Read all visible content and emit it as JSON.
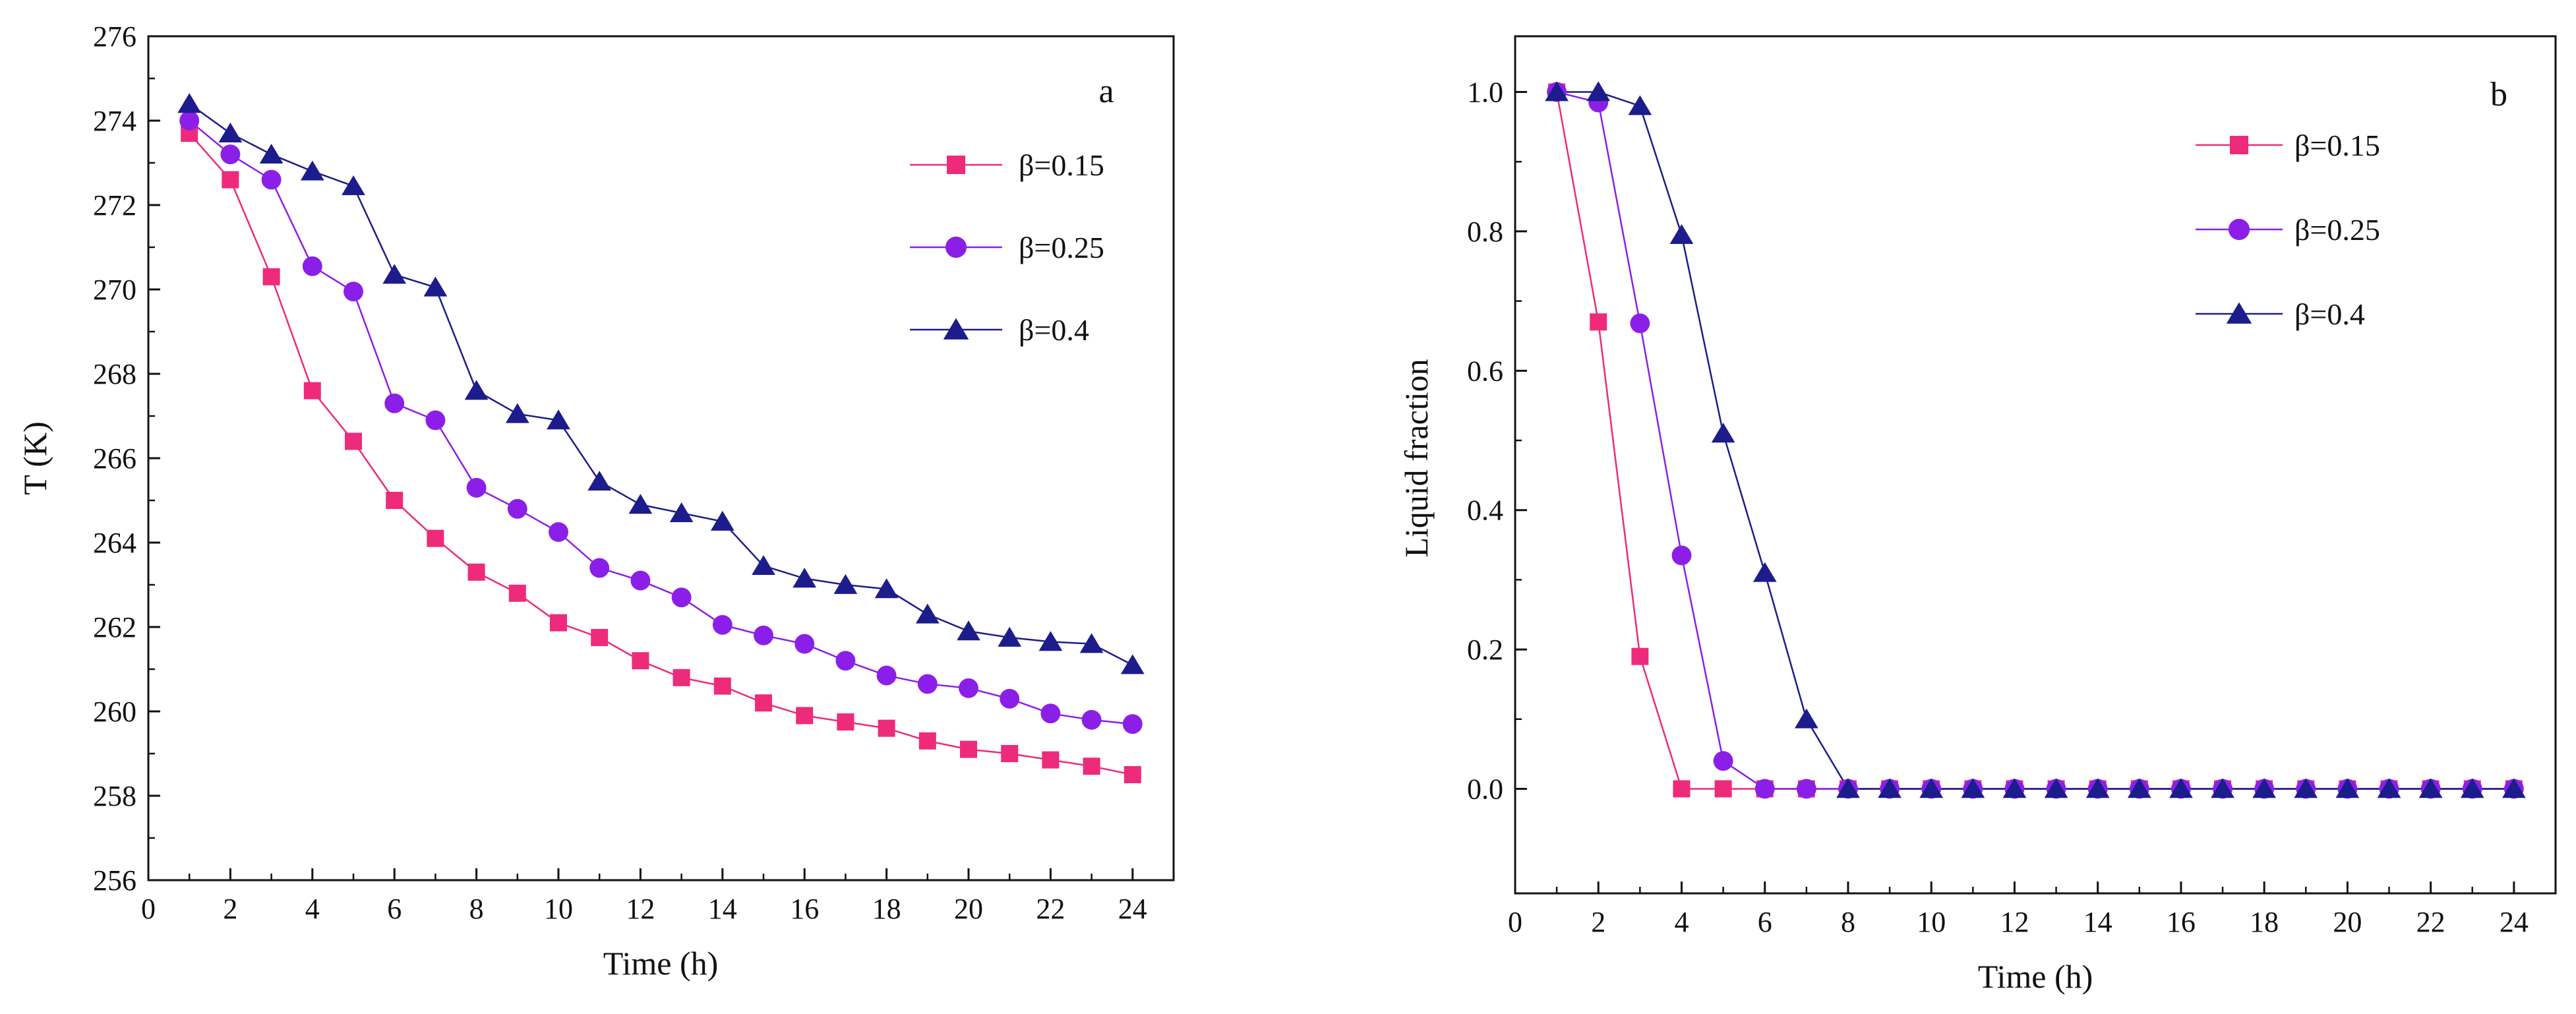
{
  "colors": {
    "s015": "#EE2A7B",
    "s025": "#8B1FE8",
    "s04": "#1C1C8C",
    "axis": "#111111"
  },
  "chart_data": [
    {
      "panel": "a",
      "type": "line",
      "title": "",
      "xlabel": "Time (h)",
      "ylabel": "T (K)",
      "xlim": [
        0,
        25
      ],
      "ylim": [
        256,
        276
      ],
      "xticks": [
        0,
        2,
        4,
        6,
        8,
        10,
        12,
        14,
        16,
        18,
        20,
        22,
        24
      ],
      "yticks": [
        256,
        258,
        260,
        262,
        264,
        266,
        268,
        270,
        272,
        274,
        276
      ],
      "x": [
        1,
        2,
        3,
        4,
        5,
        6,
        7,
        8,
        9,
        10,
        11,
        12,
        13,
        14,
        15,
        16,
        17,
        18,
        19,
        20,
        21,
        22,
        23,
        24
      ],
      "grid": false,
      "legend_position": "top-right",
      "series": [
        {
          "name": "β=0.15",
          "marker": "square",
          "color": "#EE2A7B",
          "values": [
            273.7,
            272.6,
            270.3,
            267.6,
            266.4,
            265.0,
            264.1,
            263.3,
            262.8,
            262.1,
            261.75,
            261.2,
            260.8,
            260.6,
            260.2,
            259.9,
            259.75,
            259.6,
            259.3,
            259.1,
            259.0,
            258.85,
            258.7,
            258.5
          ]
        },
        {
          "name": "β=0.25",
          "marker": "circle",
          "color": "#8B1FE8",
          "values": [
            274.0,
            273.2,
            272.6,
            270.55,
            269.95,
            267.3,
            266.9,
            265.3,
            264.8,
            264.25,
            263.4,
            263.1,
            262.7,
            262.05,
            261.8,
            261.6,
            261.2,
            260.85,
            260.65,
            260.55,
            260.3,
            259.95,
            259.8,
            259.7
          ]
        },
        {
          "name": "β=0.4",
          "marker": "triangle",
          "color": "#1C1C8C",
          "values": [
            274.4,
            273.7,
            273.2,
            272.8,
            272.45,
            270.35,
            270.05,
            267.6,
            267.05,
            266.9,
            265.45,
            264.9,
            264.7,
            264.5,
            263.45,
            263.15,
            263.0,
            262.9,
            262.3,
            261.9,
            261.75,
            261.65,
            261.6,
            261.1
          ]
        }
      ]
    },
    {
      "panel": "b",
      "type": "line",
      "title": "",
      "xlabel": "Time (h)",
      "ylabel": "Liquid fraction",
      "xlim": [
        0,
        25
      ],
      "ylim": [
        -0.15,
        1.08
      ],
      "xticks": [
        0,
        2,
        4,
        6,
        8,
        10,
        12,
        14,
        16,
        18,
        20,
        22,
        24
      ],
      "yticks": [
        0.0,
        0.2,
        0.4,
        0.6,
        0.8,
        1.0
      ],
      "ytick_labels": [
        "0.0",
        "0.2",
        "0.4",
        "0.6",
        "0.8",
        "1.0"
      ],
      "x": [
        1,
        2,
        3,
        4,
        5,
        6,
        7,
        8,
        9,
        10,
        11,
        12,
        13,
        14,
        15,
        16,
        17,
        18,
        19,
        20,
        21,
        22,
        23,
        24
      ],
      "grid": false,
      "legend_position": "top-right",
      "series": [
        {
          "name": "β=0.15",
          "marker": "square",
          "color": "#EE2A7B",
          "values": [
            1.0,
            0.67,
            0.19,
            0,
            0,
            0,
            0,
            0,
            0,
            0,
            0,
            0,
            0,
            0,
            0,
            0,
            0,
            0,
            0,
            0,
            0,
            0,
            0,
            0
          ]
        },
        {
          "name": "β=0.25",
          "marker": "circle",
          "color": "#8B1FE8",
          "values": [
            1.0,
            0.985,
            0.668,
            0.335,
            0.04,
            0,
            0,
            0,
            0,
            0,
            0,
            0,
            0,
            0,
            0,
            0,
            0,
            0,
            0,
            0,
            0,
            0,
            0,
            0
          ]
        },
        {
          "name": "β=0.4",
          "marker": "triangle",
          "color": "#1C1C8C",
          "values": [
            1.0,
            1.0,
            0.98,
            0.795,
            0.51,
            0.31,
            0.1,
            0,
            0,
            0,
            0,
            0,
            0,
            0,
            0,
            0,
            0,
            0,
            0,
            0,
            0,
            0,
            0,
            0
          ]
        }
      ]
    }
  ]
}
